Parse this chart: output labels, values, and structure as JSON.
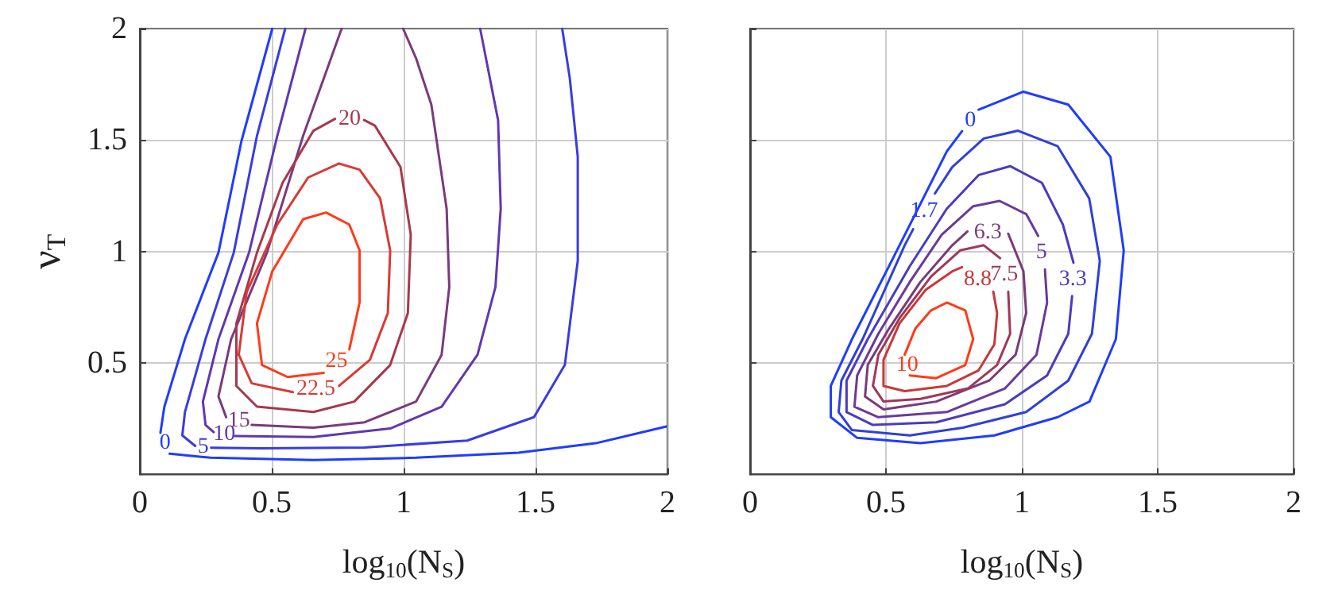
{
  "chart_data": [
    {
      "type": "line",
      "xlabel": "log$_{10}$(N$_{S}$)",
      "ylabel": "ν$_{T}$",
      "xlim": [
        0,
        2
      ],
      "xticks": [
        0,
        0.5,
        1,
        1.5,
        2
      ],
      "ylim": [
        0,
        2
      ],
      "yticks": [
        0.5,
        1,
        1.5,
        2
      ],
      "grid": true,
      "marker": "none",
      "series": [
        {
          "name": "0",
          "color": "#1f3cff",
          "x": [
            0.502,
            0.385,
            0.298,
            0.171,
            0.093,
            0.078,
            0.095,
            0.113,
            0.268,
            0.658,
            1.047,
            1.436,
            1.728,
            1.996
          ],
          "values": [
            2.0,
            1.495,
            0.995,
            0.607,
            0.304,
            0.187,
            null,
            0.093,
            0.075,
            0.065,
            0.075,
            0.098,
            0.14,
            0.215
          ]
        },
        {
          "name": "5",
          "color": "#3a3ce0",
          "x": [
            0.551,
            0.444,
            0.356,
            0.249,
            0.171,
            0.161,
            0.21,
            0.24,
            0.27,
            0.463,
            0.852,
            1.241,
            1.494,
            1.611,
            1.66,
            1.66,
            1.63,
            1.601
          ],
          "values": [
            2.0,
            1.519,
            0.995,
            0.607,
            0.28,
            0.175,
            0.128,
            null,
            0.12,
            0.117,
            0.121,
            0.152,
            0.257,
            0.491,
            0.958,
            1.425,
            1.776,
            2.0
          ]
        },
        {
          "name": "10",
          "color": "#6038b0",
          "x": [
            0.628,
            0.521,
            0.414,
            0.298,
            0.239,
            0.249,
            0.28,
            0.32,
            0.36,
            0.658,
            0.949,
            1.144,
            1.28,
            1.348,
            1.368,
            1.358,
            1.29
          ],
          "values": [
            2.0,
            1.519,
            0.995,
            0.607,
            0.327,
            0.222,
            0.19,
            null,
            0.172,
            0.168,
            0.206,
            0.304,
            0.537,
            0.841,
            1.192,
            1.589,
            2.0
          ]
        },
        {
          "name": "15",
          "color": "#7a3a7e",
          "x": [
            0.765,
            0.619,
            0.482,
            0.346,
            0.298,
            0.327,
            0.375,
            0.424,
            0.658,
            0.852,
            1.047,
            1.144,
            1.173,
            1.163,
            1.105,
            1.047,
            0.998
          ],
          "values": [
            2.0,
            1.519,
            0.995,
            0.607,
            0.35,
            0.257,
            null,
            0.222,
            0.21,
            0.234,
            0.327,
            0.537,
            0.841,
            1.192,
            1.659,
            1.867,
            2.0
          ]
        },
        {
          "name": "20",
          "color": "#a8384e",
          "x": [
            0.85,
            0.891,
            0.988,
            1.027,
            1.016,
            0.949,
            0.813,
            0.658,
            0.444,
            0.366,
            0.366,
            0.444,
            0.541,
            0.658,
            0.74
          ],
          "values": [
            1.59,
            1.565,
            1.379,
            1.075,
            0.724,
            0.491,
            0.327,
            0.28,
            0.304,
            0.397,
            0.678,
            0.995,
            1.308,
            1.542,
            1.595
          ]
        },
        {
          "name": "22.5",
          "color": "#d83a34",
          "x": [
            0.58,
            0.424,
            0.375,
            0.405,
            0.521,
            0.638,
            0.755,
            0.833,
            0.911,
            0.949,
            0.94,
            0.872,
            0.755
          ],
          "values": [
            0.369,
            0.409,
            0.537,
            0.818,
            1.121,
            1.332,
            1.395,
            1.367,
            1.238,
            1.005,
            0.724,
            0.514,
            0.397
          ]
        },
        {
          "name": "25",
          "color": "#ff3a1a",
          "x": [
            0.697,
            0.56,
            0.463,
            0.444,
            0.502,
            0.619,
            0.706,
            0.794,
            0.833,
            0.833,
            0.794
          ],
          "values": [
            0.456,
            0.437,
            0.491,
            0.678,
            0.911,
            1.145,
            1.175,
            1.121,
            1.005,
            0.771,
            0.561
          ]
        }
      ]
    },
    {
      "type": "line",
      "xlabel": "log$_{10}$(N$_{S}$)",
      "xlim": [
        0,
        2
      ],
      "xticks": [
        0,
        0.5,
        1,
        1.5,
        2
      ],
      "ylim": [
        0,
        2
      ],
      "yticks": [
        0.5,
        1,
        1.5,
        2
      ],
      "grid": true,
      "marker": "none",
      "tick_labels": "x",
      "series": [
        {
          "name": "0",
          "color": "#1f3cff",
          "x": [
            0.841,
            1.006,
            1.171,
            1.326,
            1.375,
            1.346,
            1.249,
            1.132,
            0.899,
            0.627,
            0.394,
            0.297,
            0.297,
            0.375,
            0.55,
            0.724,
            0.78
          ],
          "values": [
            1.636,
            1.717,
            1.659,
            1.425,
            1.005,
            0.607,
            0.327,
            0.257,
            0.175,
            0.14,
            0.164,
            0.257,
            0.397,
            0.607,
            1.028,
            1.449,
            1.54
          ]
        },
        {
          "name": "1.7",
          "color": "#3040d8",
          "x": [
            0.68,
            0.744,
            0.86,
            0.986,
            1.132,
            1.248,
            1.287,
            1.258,
            1.171,
            1.016,
            0.783,
            0.588,
            0.375,
            0.326,
            0.336,
            0.414,
            0.569,
            0.6
          ],
          "values": [
            1.26,
            1.379,
            1.507,
            1.542,
            1.472,
            1.238,
            0.958,
            0.631,
            0.421,
            0.28,
            0.21,
            0.175,
            0.199,
            0.28,
            0.421,
            0.607,
            1.028,
            1.1
          ]
        },
        {
          "name": "3.3",
          "color": "#4a3cc0",
          "x": [
            1.185,
            1.171,
            1.093,
            0.938,
            0.685,
            0.452,
            0.355,
            0.355,
            0.433,
            0.588,
            0.724,
            0.841,
            0.957,
            1.074,
            1.151,
            1.19
          ],
          "values": [
            0.8,
            0.631,
            0.444,
            0.315,
            0.234,
            0.222,
            0.28,
            0.421,
            0.607,
            0.935,
            1.192,
            1.343,
            1.383,
            1.308,
            1.121,
            0.95
          ]
        },
        {
          "name": "5",
          "color": "#6a3a9a",
          "x": [
            1.085,
            1.093,
            1.054,
            0.938,
            0.724,
            0.472,
            0.384,
            0.394,
            0.472,
            0.588,
            0.705,
            0.821,
            0.918,
            1.016,
            1.06
          ],
          "values": [
            0.92,
            0.771,
            0.537,
            0.386,
            0.28,
            0.257,
            0.304,
            0.444,
            0.631,
            0.864,
            1.075,
            1.203,
            1.227,
            1.168,
            1.07
          ]
        },
        {
          "name": "6.3",
          "color": "#7a3a7a",
          "x": [
            0.95,
            1.006,
            1.016,
            0.977,
            0.88,
            0.685,
            0.491,
            0.423,
            0.433,
            0.511,
            0.627,
            0.744,
            0.8
          ],
          "values": [
            1.08,
            0.911,
            0.724,
            0.537,
            0.421,
            0.327,
            0.292,
            0.35,
            0.491,
            0.654,
            0.864,
            1.028,
            1.09
          ]
        },
        {
          "name": "7.5",
          "color": "#a03858",
          "x": [
            0.95,
            0.957,
            0.909,
            0.802,
            0.627,
            0.491,
            0.452,
            0.472,
            0.55,
            0.666,
            0.773,
            0.86,
            0.92
          ],
          "values": [
            0.82,
            0.631,
            0.491,
            0.386,
            0.339,
            0.327,
            0.397,
            0.537,
            0.701,
            0.888,
            1.005,
            1.028,
            0.97
          ]
        },
        {
          "name": "8.8",
          "color": "#c83838",
          "x": [
            0.895,
            0.909,
            0.899,
            0.841,
            0.724,
            0.569,
            0.491,
            0.491,
            0.55,
            0.647,
            0.744,
            0.78
          ],
          "values": [
            0.82,
            0.724,
            0.584,
            0.467,
            0.397,
            0.374,
            0.397,
            0.514,
            0.678,
            0.829,
            0.911,
            0.93
          ]
        },
        {
          "name": "10",
          "color": "#ff3a1a",
          "x": [
            0.569,
            0.608,
            0.666,
            0.724,
            0.792,
            0.821,
            0.792,
            0.685,
            0.588
          ],
          "values": [
            0.537,
            0.654,
            0.736,
            0.771,
            0.736,
            0.607,
            0.491,
            0.432,
            0.444
          ]
        }
      ]
    }
  ]
}
